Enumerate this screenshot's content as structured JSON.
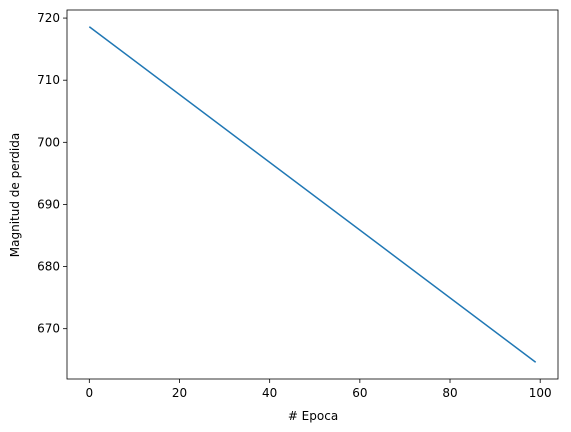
{
  "chart_data": {
    "type": "line",
    "xlabel": "# Epoca",
    "ylabel": "Magnitud de perdida",
    "x": [
      0,
      99
    ],
    "series": [
      {
        "values": [
          718.6,
          664.6
        ],
        "color": "#1f77b4"
      }
    ],
    "xlim": [
      -4.95,
      103.95
    ],
    "xticks": [
      0,
      20,
      40,
      60,
      80,
      100
    ],
    "ylim": [
      661.9,
      721.3
    ],
    "yticks": [
      670,
      680,
      690,
      700,
      710,
      720
    ]
  }
}
